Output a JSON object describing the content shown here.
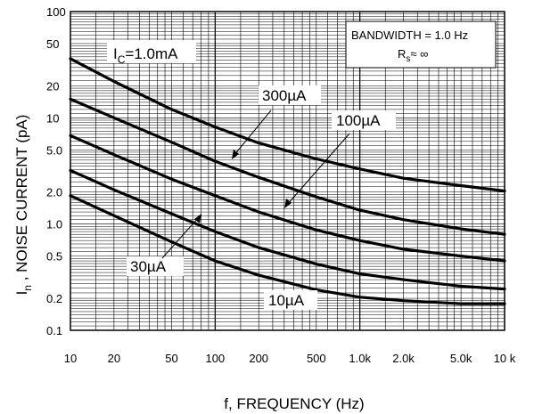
{
  "chart_data": {
    "type": "line",
    "xscale": "log",
    "yscale": "log",
    "xlim": [
      10,
      10000
    ],
    "ylim": [
      0.1,
      100
    ],
    "grid": true,
    "ylabel": {
      "main": "I",
      "sub": "n",
      "rest": " , NOISE CURRENT (pA)"
    },
    "xlabel": "f, FREQUENCY (Hz)",
    "x_ticks": [
      {
        "v": 10,
        "label": "10"
      },
      {
        "v": 20,
        "label": "20"
      },
      {
        "v": 50,
        "label": "50"
      },
      {
        "v": 100,
        "label": "100"
      },
      {
        "v": 200,
        "label": "200"
      },
      {
        "v": 500,
        "label": "500"
      },
      {
        "v": 1000,
        "label": "1.0k"
      },
      {
        "v": 2000,
        "label": "2.0k"
      },
      {
        "v": 5000,
        "label": "5.0k"
      },
      {
        "v": 10000,
        "label": "10 k"
      }
    ],
    "y_ticks": [
      {
        "v": 100,
        "label": "100"
      },
      {
        "v": 50,
        "label": "50"
      },
      {
        "v": 20,
        "label": "20"
      },
      {
        "v": 10,
        "label": "10"
      },
      {
        "v": 5,
        "label": "5.0"
      },
      {
        "v": 2,
        "label": "2.0"
      },
      {
        "v": 1,
        "label": "1.0"
      },
      {
        "v": 0.5,
        "label": "0.5"
      },
      {
        "v": 0.2,
        "label": "0.2"
      },
      {
        "v": 0.1,
        "label": "0.1"
      }
    ],
    "series": [
      {
        "name": "1.0mA",
        "x": [
          10,
          20,
          50,
          100,
          200,
          500,
          1000,
          2000,
          5000,
          10000
        ],
        "y": [
          36,
          22,
          12,
          8.2,
          5.8,
          4.1,
          3.3,
          2.7,
          2.3,
          2.05
        ]
      },
      {
        "name": "300µA",
        "x": [
          10,
          20,
          50,
          100,
          200,
          500,
          1000,
          2000,
          5000,
          10000
        ],
        "y": [
          15,
          10,
          5.9,
          3.9,
          2.75,
          1.8,
          1.35,
          1.1,
          0.9,
          0.8
        ]
      },
      {
        "name": "100µA",
        "x": [
          10,
          20,
          50,
          100,
          200,
          500,
          1000,
          2000,
          5000,
          10000
        ],
        "y": [
          6.8,
          4.5,
          2.65,
          1.85,
          1.3,
          0.88,
          0.7,
          0.58,
          0.5,
          0.45
        ]
      },
      {
        "name": "30µA",
        "x": [
          10,
          20,
          50,
          100,
          200,
          500,
          1000,
          2000,
          5000,
          10000
        ],
        "y": [
          3.2,
          2.1,
          1.25,
          0.85,
          0.6,
          0.42,
          0.34,
          0.3,
          0.26,
          0.245
        ]
      },
      {
        "name": "10µA",
        "x": [
          10,
          20,
          50,
          100,
          200,
          500,
          1000,
          2000,
          5000,
          10000
        ],
        "y": [
          1.85,
          1.2,
          0.68,
          0.45,
          0.33,
          0.24,
          0.205,
          0.19,
          0.178,
          0.178
        ]
      }
    ],
    "annotations": {
      "ic": {
        "main": "I",
        "sub": "C",
        "rest": "=1.0mA"
      },
      "a300": "300µA",
      "a100": "100µA",
      "a30": "30µA",
      "a10": "10µA",
      "bandwidth": "BANDWIDTH = 1.0 Hz",
      "rs": {
        "main": "R",
        "sub": "s",
        "rest": "≈  ∞"
      }
    }
  }
}
